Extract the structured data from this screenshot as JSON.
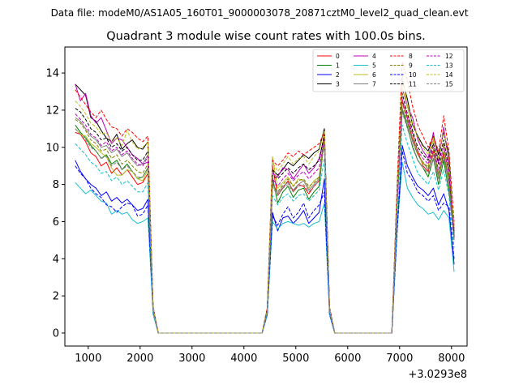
{
  "figure": {
    "suptitle": "Data file: modeM0/AS1A05_160T01_9000003078_20871cztM0_level2_quad_clean.evt"
  },
  "chart_data": {
    "type": "line",
    "title": "Quadrant 3 module wise count rates with 100.0s bins.",
    "xlabel": "",
    "ylabel": "",
    "x_offset_label": "+3.0293e8",
    "xlim": [
      550,
      8300
    ],
    "ylim": [
      -0.7,
      15.4
    ],
    "xticks": [
      1000,
      2000,
      3000,
      4000,
      5000,
      6000,
      7000,
      8000
    ],
    "xtick_labels": [
      "1000",
      "2000",
      "3000",
      "4000",
      "5000",
      "6000",
      "7000",
      "8000"
    ],
    "yticks": [
      0,
      2,
      4,
      6,
      8,
      10,
      12,
      14
    ],
    "ytick_labels": [
      "0",
      "2",
      "4",
      "6",
      "8",
      "10",
      "12",
      "14"
    ],
    "legend_position": "top-right",
    "legend_columns": 4,
    "x": [
      750,
      850,
      950,
      1050,
      1150,
      1250,
      1350,
      1450,
      1550,
      1650,
      1750,
      1850,
      1950,
      2050,
      2150,
      2250,
      2350,
      2450,
      4350,
      4450,
      4550,
      4650,
      4750,
      4850,
      4950,
      5050,
      5150,
      5250,
      5350,
      5450,
      5550,
      5650,
      5750,
      5850,
      6850,
      6950,
      7050,
      7150,
      7250,
      7350,
      7450,
      7550,
      7650,
      7750,
      7850,
      7950,
      8050
    ],
    "series": [
      {
        "name": "0",
        "color": "#ff0000",
        "dash": "solid",
        "values": [
          10.8,
          10.7,
          10.3,
          9.7,
          9.5,
          9.0,
          9.2,
          8.6,
          8.9,
          8.5,
          8.8,
          8.4,
          8.0,
          8.1,
          8.6,
          1.2,
          0,
          0,
          0,
          1.2,
          9.0,
          7.4,
          7.8,
          8.2,
          7.6,
          8.0,
          7.9,
          7.5,
          7.9,
          8.2,
          10.9,
          1.2,
          0,
          0,
          0,
          7.0,
          12.5,
          11.6,
          10.4,
          9.8,
          9.0,
          8.7,
          9.8,
          8.3,
          9.7,
          8.0,
          5.8
        ]
      },
      {
        "name": "1",
        "color": "#008000",
        "dash": "solid",
        "values": [
          11.2,
          10.8,
          10.5,
          10.1,
          9.8,
          9.4,
          9.6,
          9.1,
          9.3,
          8.8,
          9.1,
          8.7,
          8.3,
          8.4,
          8.9,
          1.2,
          0,
          0,
          0,
          1.2,
          8.4,
          7.0,
          7.6,
          7.9,
          7.3,
          7.7,
          7.8,
          7.2,
          7.6,
          7.9,
          10.5,
          1.2,
          0,
          0,
          0,
          6.8,
          12.0,
          11.1,
          10.0,
          9.3,
          8.9,
          8.4,
          9.4,
          8.0,
          9.3,
          7.6,
          5.4
        ]
      },
      {
        "name": "2",
        "color": "#0000ff",
        "dash": "solid",
        "values": [
          9.3,
          8.7,
          8.3,
          8.0,
          7.8,
          7.4,
          7.6,
          7.1,
          7.3,
          7.0,
          7.2,
          6.9,
          6.6,
          6.7,
          7.2,
          1.2,
          0,
          0,
          0,
          1.0,
          6.5,
          5.5,
          6.2,
          6.3,
          5.9,
          6.2,
          6.6,
          5.9,
          6.2,
          6.5,
          8.3,
          1.0,
          0,
          0,
          0,
          5.5,
          10.1,
          9.0,
          8.4,
          7.9,
          7.7,
          7.4,
          7.8,
          6.9,
          7.5,
          6.6,
          3.7
        ]
      },
      {
        "name": "3",
        "color": "#000000",
        "dash": "solid",
        "values": [
          13.4,
          13.1,
          12.8,
          11.6,
          11.4,
          10.9,
          10.5,
          10.3,
          10.7,
          9.9,
          10.2,
          10.4,
          10.0,
          9.9,
          10.3,
          1.4,
          0,
          0,
          0,
          1.3,
          8.8,
          8.5,
          8.8,
          9.2,
          9.0,
          9.3,
          9.6,
          9.4,
          9.7,
          9.9,
          11.0,
          1.3,
          0,
          0,
          0,
          7.6,
          13.6,
          12.6,
          11.2,
          10.6,
          10.1,
          9.8,
          10.6,
          9.6,
          10.8,
          9.6,
          5.2
        ]
      },
      {
        "name": "4",
        "color": "#bf00bf",
        "dash": "solid",
        "values": [
          13.4,
          12.5,
          12.9,
          11.7,
          11.3,
          11.6,
          10.9,
          10.2,
          10.5,
          10.4,
          10.0,
          9.6,
          9.4,
          9.1,
          9.2,
          1.4,
          0,
          0,
          0,
          1.3,
          8.6,
          8.4,
          8.9,
          8.8,
          8.3,
          8.7,
          9.1,
          8.6,
          8.9,
          9.4,
          10.6,
          1.3,
          0,
          0,
          0,
          7.4,
          13.2,
          12.2,
          11.6,
          10.4,
          9.8,
          9.4,
          10.8,
          9.2,
          11.1,
          9.0,
          5.6
        ]
      },
      {
        "name": "5",
        "color": "#17becf",
        "dash": "solid",
        "values": [
          8.1,
          7.8,
          7.5,
          7.7,
          7.4,
          7.1,
          7.0,
          6.4,
          6.6,
          6.4,
          6.5,
          6.1,
          5.9,
          6.0,
          6.2,
          1.0,
          0,
          0,
          0,
          1.0,
          6.0,
          5.6,
          5.9,
          6.0,
          5.9,
          5.8,
          5.9,
          5.7,
          5.9,
          6.0,
          7.0,
          1.0,
          0,
          0,
          0,
          5.5,
          9.2,
          7.8,
          7.3,
          6.9,
          6.7,
          6.4,
          6.5,
          6.1,
          6.6,
          6.2,
          3.3
        ]
      },
      {
        "name": "6",
        "color": "#bcbd22",
        "dash": "solid",
        "values": [
          11.0,
          10.7,
          10.6,
          10.2,
          10.0,
          9.7,
          9.5,
          8.9,
          8.5,
          8.5,
          8.8,
          8.7,
          8.3,
          8.2,
          8.8,
          1.2,
          0,
          0,
          0,
          1.3,
          9.5,
          7.8,
          8.1,
          8.4,
          7.9,
          8.3,
          8.2,
          7.8,
          8.2,
          8.4,
          10.8,
          1.2,
          0,
          0,
          0,
          7.2,
          14.0,
          12.2,
          10.8,
          9.6,
          9.1,
          9.0,
          10.4,
          8.4,
          10.2,
          8.2,
          5.9
        ]
      },
      {
        "name": "7",
        "color": "#7f7f7f",
        "dash": "solid",
        "values": [
          11.6,
          11.4,
          11.0,
          10.6,
          10.4,
          10.0,
          10.1,
          9.7,
          9.9,
          9.5,
          9.7,
          9.3,
          9.0,
          9.1,
          9.6,
          1.3,
          0,
          0,
          0,
          1.2,
          8.1,
          7.5,
          7.9,
          8.1,
          7.7,
          8.0,
          8.2,
          7.7,
          8.0,
          8.3,
          10.3,
          1.2,
          0,
          0,
          0,
          7.0,
          12.1,
          11.3,
          10.3,
          9.6,
          9.2,
          8.8,
          9.6,
          8.5,
          9.5,
          8.1,
          5.0
        ]
      },
      {
        "name": "8",
        "color": "#ff0000",
        "dash": "dashed",
        "values": [
          13.1,
          12.7,
          12.3,
          11.9,
          11.6,
          12.0,
          11.5,
          11.1,
          11.0,
          10.6,
          11.0,
          10.8,
          10.5,
          10.3,
          10.6,
          1.4,
          0,
          0,
          0,
          1.4,
          9.3,
          9.0,
          9.3,
          9.7,
          9.5,
          9.8,
          9.6,
          9.8,
          10.0,
          10.2,
          10.8,
          1.4,
          0,
          0,
          0,
          7.9,
          14.6,
          13.6,
          12.2,
          11.2,
          10.6,
          10.0,
          10.6,
          9.8,
          11.7,
          9.8,
          6.0
        ]
      },
      {
        "name": "9",
        "color": "#808000",
        "dash": "dashed",
        "values": [
          11.5,
          11.3,
          10.9,
          10.4,
          10.2,
          9.8,
          9.9,
          9.4,
          9.6,
          9.1,
          9.3,
          9.0,
          8.7,
          8.6,
          9.1,
          1.3,
          0,
          0,
          0,
          1.2,
          8.0,
          7.6,
          8.0,
          8.3,
          7.9,
          8.2,
          8.3,
          7.9,
          8.1,
          8.4,
          10.4,
          1.2,
          0,
          0,
          0,
          6.9,
          12.4,
          11.4,
          10.5,
          9.6,
          9.2,
          8.9,
          9.9,
          8.6,
          9.8,
          8.2,
          5.3
        ]
      },
      {
        "name": "10",
        "color": "#0000ff",
        "dash": "dashed",
        "values": [
          9.0,
          8.6,
          8.3,
          7.8,
          7.5,
          7.3,
          6.9,
          6.8,
          6.5,
          6.8,
          7.0,
          6.9,
          6.3,
          6.4,
          6.9,
          1.1,
          0,
          0,
          0,
          1.0,
          6.3,
          5.8,
          6.4,
          6.8,
          6.2,
          6.5,
          7.0,
          6.2,
          6.6,
          6.9,
          7.6,
          1.0,
          0,
          0,
          0,
          5.4,
          9.8,
          8.6,
          8.2,
          7.6,
          7.4,
          7.1,
          7.4,
          6.6,
          7.0,
          6.8,
          4.0
        ]
      },
      {
        "name": "11",
        "color": "#000000",
        "dash": "dashed",
        "values": [
          12.1,
          11.9,
          11.5,
          11.0,
          10.8,
          10.4,
          10.5,
          10.0,
          10.2,
          9.8,
          10.0,
          9.6,
          9.3,
          9.3,
          9.8,
          1.3,
          0,
          0,
          0,
          1.3,
          8.5,
          8.3,
          8.6,
          8.9,
          8.6,
          8.9,
          9.1,
          8.8,
          9.0,
          9.3,
          10.7,
          1.3,
          0,
          0,
          0,
          7.3,
          12.9,
          11.8,
          10.9,
          10.0,
          9.6,
          9.3,
          10.2,
          9.1,
          10.4,
          8.8,
          5.5
        ]
      },
      {
        "name": "12",
        "color": "#bf00bf",
        "dash": "dashed",
        "values": [
          11.8,
          11.5,
          11.2,
          10.7,
          10.5,
          10.1,
          10.3,
          9.8,
          10.0,
          9.6,
          9.8,
          9.4,
          9.1,
          9.0,
          9.5,
          1.3,
          0,
          0,
          0,
          1.2,
          8.3,
          7.9,
          8.3,
          8.6,
          8.2,
          8.5,
          8.7,
          8.3,
          8.6,
          8.9,
          10.5,
          1.2,
          0,
          0,
          0,
          7.1,
          12.6,
          11.6,
          10.7,
          9.8,
          9.4,
          9.1,
          10.0,
          8.8,
          10.1,
          8.5,
          5.1
        ]
      },
      {
        "name": "13",
        "color": "#17becf",
        "dash": "dashed",
        "values": [
          10.2,
          9.9,
          9.6,
          9.2,
          9.0,
          8.6,
          8.7,
          8.2,
          8.4,
          8.0,
          8.2,
          7.9,
          7.6,
          7.6,
          8.1,
          1.1,
          0,
          0,
          0,
          1.1,
          7.4,
          6.9,
          7.3,
          7.5,
          7.1,
          7.4,
          7.5,
          7.1,
          7.4,
          7.7,
          9.4,
          1.1,
          0,
          0,
          0,
          6.2,
          11.2,
          10.2,
          9.4,
          8.6,
          8.3,
          8.0,
          8.7,
          7.7,
          8.8,
          7.4,
          4.6
        ]
      },
      {
        "name": "14",
        "color": "#bcbd22",
        "dash": "dashed",
        "values": [
          12.5,
          12.2,
          11.8,
          11.3,
          11.1,
          10.7,
          10.8,
          10.3,
          10.5,
          10.1,
          10.9,
          10.3,
          9.9,
          10.0,
          10.3,
          1.4,
          0,
          0,
          0,
          1.3,
          9.2,
          8.7,
          9.1,
          9.5,
          9.1,
          9.4,
          9.5,
          9.1,
          9.5,
          9.8,
          10.9,
          1.3,
          0,
          0,
          0,
          7.6,
          13.2,
          12.3,
          11.3,
          10.5,
          10.0,
          9.6,
          10.5,
          9.4,
          10.9,
          9.2,
          5.7
        ]
      },
      {
        "name": "15",
        "color": "#7f7f7f",
        "dash": "dashed",
        "values": [
          11.0,
          10.7,
          10.4,
          10.0,
          9.8,
          9.4,
          9.5,
          9.0,
          9.2,
          8.8,
          9.0,
          8.7,
          8.4,
          8.4,
          8.9,
          1.2,
          0,
          0,
          0,
          1.2,
          7.9,
          7.4,
          7.8,
          8.0,
          7.6,
          7.9,
          8.0,
          7.6,
          7.9,
          8.2,
          10.2,
          1.2,
          0,
          0,
          0,
          6.8,
          11.9,
          11.0,
          10.1,
          9.3,
          8.9,
          8.6,
          9.4,
          8.3,
          9.5,
          8.0,
          4.9
        ]
      }
    ]
  }
}
